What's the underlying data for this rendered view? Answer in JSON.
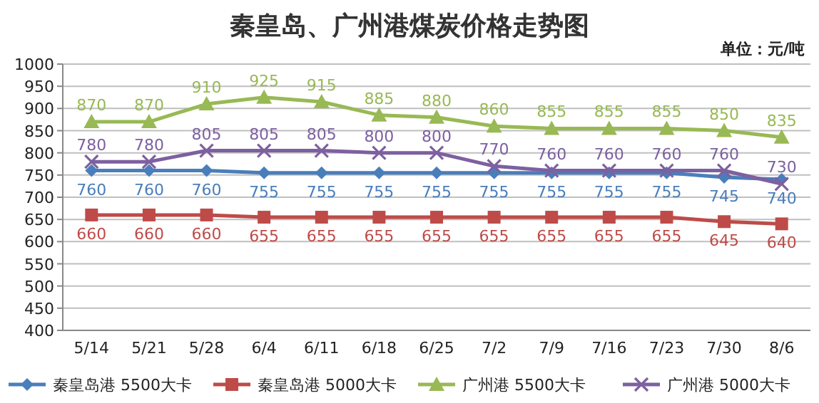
{
  "chart_data": {
    "type": "line",
    "title": "秦皇岛、广州港煤炭价格走势图",
    "annotations": [
      "单位：元/吨"
    ],
    "categories": [
      "5/14",
      "5/21",
      "5/28",
      "6/4",
      "6/11",
      "6/18",
      "6/25",
      "7/2",
      "7/9",
      "7/16",
      "7/23",
      "7/30",
      "8/6"
    ],
    "series": [
      {
        "name": "秦皇岛港 5500大卡",
        "color": "#4a7ebb",
        "marker": "diamond",
        "values": [
          760,
          760,
          760,
          755,
          755,
          755,
          755,
          755,
          755,
          755,
          755,
          745,
          740
        ]
      },
      {
        "name": "秦皇岛港 5000大卡",
        "color": "#be4b48",
        "marker": "square",
        "values": [
          660,
          660,
          660,
          655,
          655,
          655,
          655,
          655,
          655,
          655,
          655,
          645,
          640
        ]
      },
      {
        "name": "广州港 5500大卡",
        "color": "#98b954",
        "marker": "triangle",
        "values": [
          870,
          870,
          910,
          925,
          915,
          885,
          880,
          860,
          855,
          855,
          855,
          850,
          835
        ]
      },
      {
        "name": "广州港 5000大卡",
        "color": "#7d60a0",
        "marker": "cross",
        "values": [
          780,
          780,
          805,
          805,
          805,
          800,
          800,
          770,
          760,
          760,
          760,
          760,
          730
        ]
      }
    ],
    "ylim": [
      400,
      1000
    ],
    "yticks": [
      400,
      450,
      500,
      550,
      600,
      650,
      700,
      750,
      800,
      850,
      900,
      950,
      1000
    ],
    "grid": "y",
    "legend": "bottom",
    "data_labels": true
  }
}
